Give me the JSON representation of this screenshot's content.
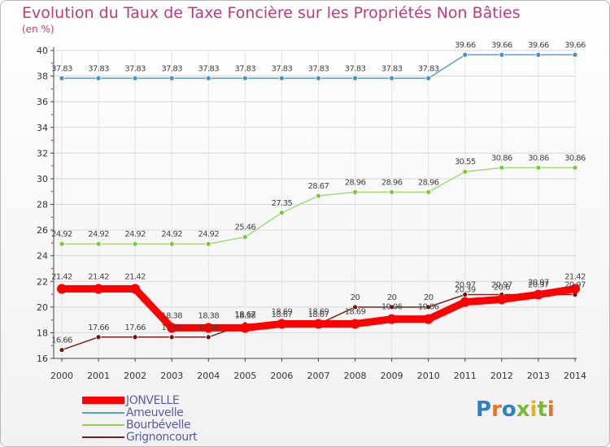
{
  "chart_data": {
    "type": "line",
    "title": "Evolution du Taux de Taxe Foncière sur les Propriétés Non Bâties",
    "subtitle": "(en %)",
    "xlabel": "",
    "ylabel": "",
    "ylim": [
      16,
      40
    ],
    "yticks": [
      "16",
      "18",
      "20",
      "22",
      "24",
      "26",
      "28",
      "30",
      "32",
      "34",
      "36",
      "38",
      "40"
    ],
    "categories": [
      "2000",
      "2001",
      "2002",
      "2003",
      "2004",
      "2005",
      "2006",
      "2007",
      "2008",
      "2009",
      "2010",
      "2011",
      "2012",
      "2013",
      "2014"
    ],
    "series": [
      {
        "name": "JONVELLE",
        "color": "#ff0000",
        "values": [
          21.42,
          21.42,
          21.42,
          18.38,
          18.38,
          18.38,
          18.69,
          18.69,
          18.69,
          19.06,
          19.06,
          20.39,
          20.6,
          20.97,
          21.42
        ],
        "labels": [
          "21.42",
          "21.42",
          "21.42",
          "18.38",
          "18.38",
          "18.38",
          "18.69",
          "18.69",
          "18.69",
          "19.06",
          "19.06",
          "20.39",
          "20.6",
          "20.97",
          "21.42"
        ]
      },
      {
        "name": "Ameuvelle",
        "color": "#5b9bd5",
        "values": [
          37.83,
          37.83,
          37.83,
          37.83,
          37.83,
          37.83,
          37.83,
          37.83,
          37.83,
          37.83,
          37.83,
          39.66,
          39.66,
          39.66,
          39.66
        ],
        "labels": [
          "37.83",
          "37.83",
          "37.83",
          "37.83",
          "37.83",
          "37.83",
          "37.83",
          "37.83",
          "37.83",
          "37.83",
          "37.83",
          "39.66",
          "39.66",
          "39.66",
          "39.66"
        ]
      },
      {
        "name": "Bourbévelle",
        "color": "#8fd14f",
        "values": [
          24.92,
          24.92,
          24.92,
          24.92,
          24.92,
          25.46,
          27.35,
          28.67,
          28.96,
          28.96,
          28.96,
          30.55,
          30.86,
          30.86,
          30.86
        ],
        "labels": [
          "24.92",
          "24.92",
          "24.92",
          "24.92",
          "24.92",
          "25.46",
          "27.35",
          "28.67",
          "28.96",
          "28.96",
          "28.96",
          "30.55",
          "30.86",
          "30.86",
          "30.86"
        ]
      },
      {
        "name": "Grignoncourt",
        "color": "#7a2020",
        "values": [
          16.66,
          17.66,
          17.66,
          17.66,
          17.66,
          18.67,
          18.67,
          18.67,
          20,
          20,
          20,
          20.97,
          20.97,
          20.97,
          20.97
        ],
        "labels": [
          "16.66",
          "17.66",
          "17.66",
          "17.66",
          "17.66",
          "18.67",
          "18.67",
          "18.67",
          "20",
          "20",
          "20",
          "20.97",
          "20.97",
          "20.97",
          "20.97"
        ]
      }
    ],
    "legend_position": "bottom-left"
  },
  "logo": {
    "text": "Proxiti"
  }
}
